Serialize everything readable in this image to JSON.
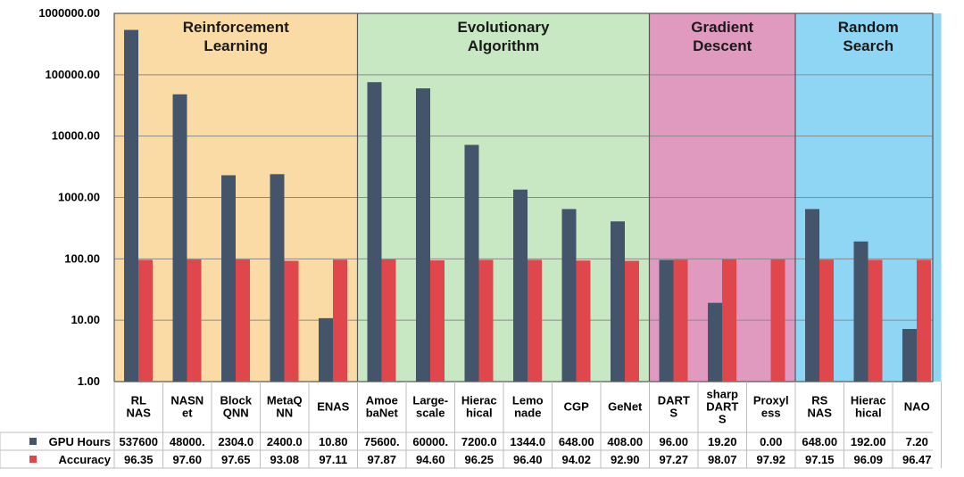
{
  "chart_data": {
    "type": "bar",
    "scale": "log",
    "ylim": [
      1,
      1000000
    ],
    "y_ticks": [
      "1.00",
      "10.00",
      "100.00",
      "1000.00",
      "10000.00",
      "100000.00",
      "1000000.00"
    ],
    "groups": [
      {
        "name": [
          "Reinforcement",
          "Learning"
        ],
        "start": 0,
        "end": 4,
        "color": "#fbdba5"
      },
      {
        "name": [
          "Evolutionary",
          "Algorithm"
        ],
        "start": 5,
        "end": 10,
        "color": "#c7e8c2"
      },
      {
        "name": [
          "Gradient",
          "Descent"
        ],
        "start": 11,
        "end": 13,
        "color": "#e09ac0"
      },
      {
        "name": [
          "Random",
          "Search"
        ],
        "start": 14,
        "end": 16,
        "color": "#8fd6f5"
      }
    ],
    "categories": [
      [
        "RL",
        "NAS"
      ],
      [
        "NASN",
        "et"
      ],
      [
        "Block",
        "QNN"
      ],
      [
        "MetaQ",
        "NN"
      ],
      [
        "ENAS"
      ],
      [
        "Amoe",
        "baNet"
      ],
      [
        "Large-",
        "scale"
      ],
      [
        "Hierac",
        "hical"
      ],
      [
        "Lemo",
        "nade"
      ],
      [
        "CGP"
      ],
      [
        "GeNet"
      ],
      [
        "DART",
        "S"
      ],
      [
        "sharp",
        "DART",
        "S"
      ],
      [
        "Proxyl",
        "ess"
      ],
      [
        "RS",
        "NAS"
      ],
      [
        "Hierac",
        "hical"
      ],
      [
        "NAO"
      ]
    ],
    "series": [
      {
        "name": "GPU Hours",
        "color": "#44546a",
        "values": [
          537600,
          48000,
          2304,
          2400,
          10.8,
          75600,
          60000,
          7200,
          1344,
          648,
          408,
          96,
          19.2,
          0,
          648,
          192,
          7.2
        ],
        "labels": [
          "537600",
          "48000.",
          "2304.0",
          "2400.0",
          "10.80",
          "75600.",
          "60000.",
          "7200.0",
          "1344.0",
          "648.00",
          "408.00",
          "96.00",
          "19.20",
          "0.00",
          "648.00",
          "192.00",
          "7.20"
        ]
      },
      {
        "name": "Accuracy",
        "color": "#e0474c",
        "values": [
          96.35,
          97.6,
          97.65,
          93.08,
          97.11,
          97.87,
          94.6,
          96.25,
          96.4,
          94.02,
          92.9,
          97.27,
          98.07,
          97.92,
          97.15,
          96.09,
          96.47
        ],
        "labels": [
          "96.35",
          "97.60",
          "97.65",
          "93.08",
          "97.11",
          "97.87",
          "94.60",
          "96.25",
          "96.40",
          "94.02",
          "92.90",
          "97.27",
          "98.07",
          "97.92",
          "97.15",
          "96.09",
          "96.47"
        ]
      }
    ],
    "table": true,
    "legend": "left of data table"
  }
}
